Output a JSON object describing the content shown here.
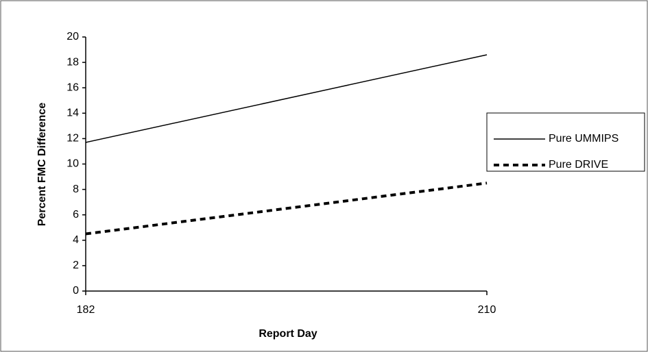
{
  "chart_data": {
    "type": "line",
    "xlabel": "Report Day",
    "ylabel": "Percent FMC Difference",
    "x": [
      182,
      210
    ],
    "series": [
      {
        "name": "Pure UMMIPS",
        "color": "#000000",
        "dash": false,
        "values": [
          11.7,
          18.6
        ]
      },
      {
        "name": "Pure DRIVE",
        "color": "#000000",
        "dash": true,
        "values": [
          4.5,
          8.5
        ]
      }
    ],
    "xlim": [
      182,
      210
    ],
    "xticks": [
      182,
      210
    ],
    "ylim": [
      0,
      20
    ],
    "yticks": [
      0,
      2,
      4,
      6,
      8,
      10,
      12,
      14,
      16,
      18,
      20
    ],
    "legend": "right"
  }
}
